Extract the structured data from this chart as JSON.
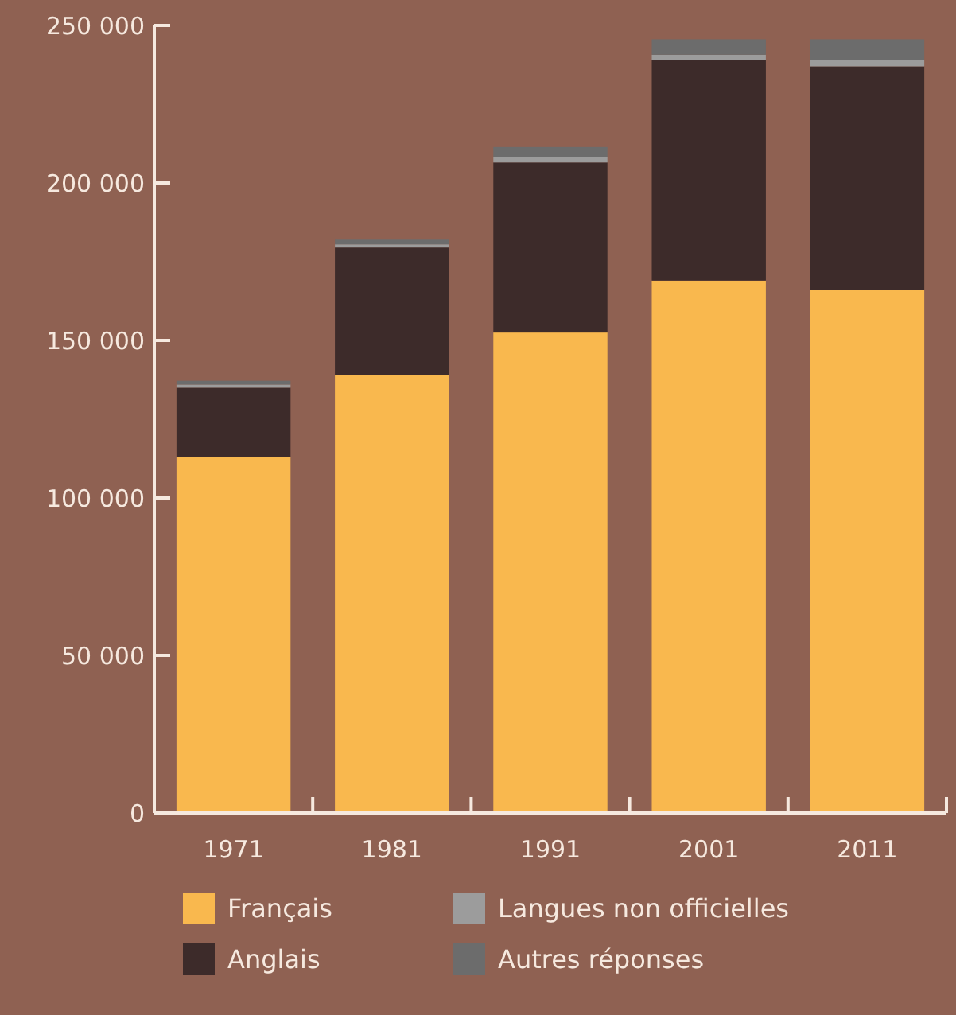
{
  "chart_data": {
    "type": "bar",
    "stacked": true,
    "categories": [
      "1971",
      "1981",
      "1991",
      "2001",
      "2011"
    ],
    "ylim": [
      0,
      250000
    ],
    "yticks": [
      0,
      {
        "value": 50000,
        "label": "50 000"
      },
      {
        "value": 100000,
        "label": "100 000"
      },
      {
        "value": 150000,
        "label": "150 000"
      },
      {
        "value": 200000,
        "label": "200 000"
      },
      {
        "value": 250000,
        "label": "250 000"
      }
    ],
    "grid": false,
    "legend": "bottom",
    "series": [
      {
        "name": "Français",
        "color": "#f9b84e",
        "values": [
          113000,
          139000,
          152500,
          169000,
          166000
        ]
      },
      {
        "name": "Anglais",
        "color": "#3d2b2a",
        "values": [
          22000,
          40500,
          54000,
          70000,
          71000
        ]
      },
      {
        "name": "Langues non officielles",
        "color": "#9c9c9c",
        "values": [
          1000,
          1000,
          1700,
          1700,
          2000
        ]
      },
      {
        "name": "Autres réponses",
        "color": "#6c6c6c",
        "values": [
          1200,
          1500,
          3200,
          4900,
          6600
        ]
      }
    ]
  }
}
